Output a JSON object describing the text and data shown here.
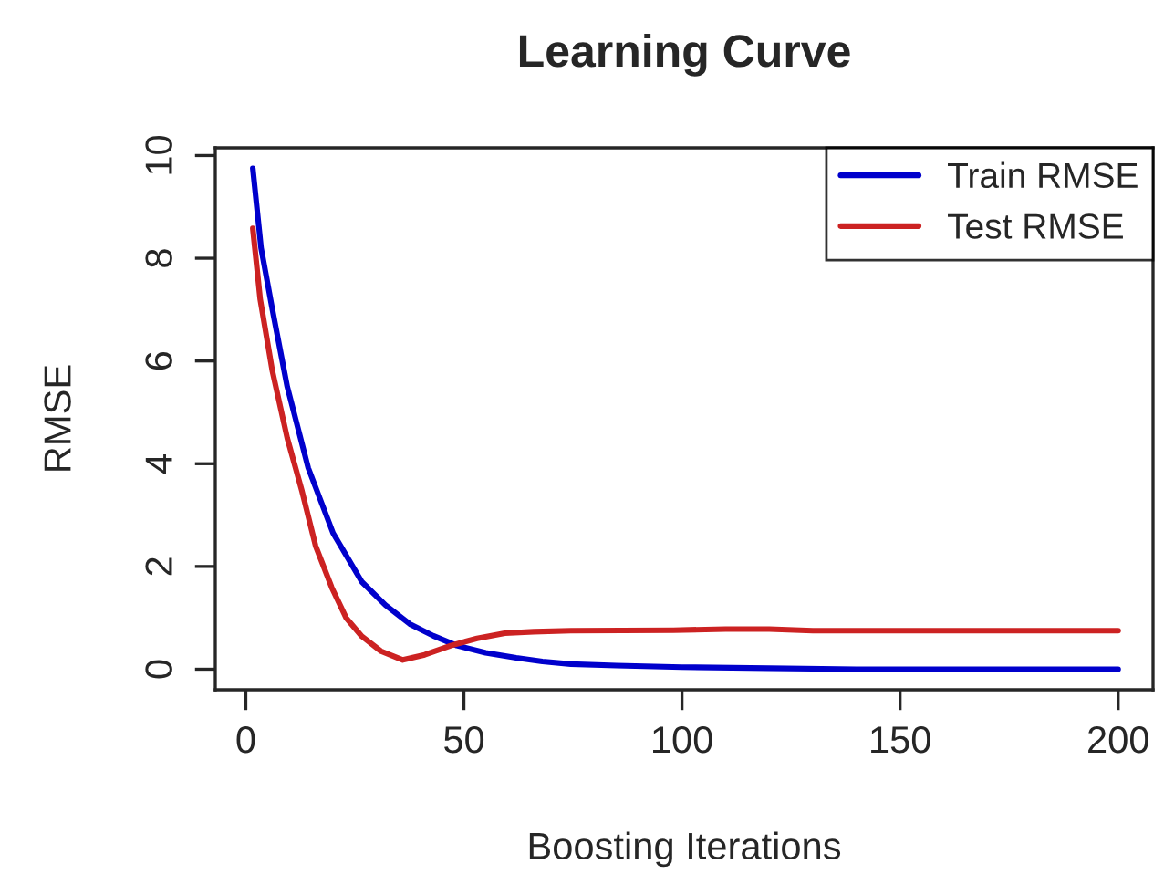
{
  "chart_data": {
    "type": "line",
    "title": "Learning Curve",
    "xlabel": "Boosting Iterations",
    "ylabel": "RMSE",
    "series": [
      {
        "name": "Train RMSE",
        "color": "#0000cc",
        "x": [
          1.6,
          3.5,
          6.1,
          9.5,
          14.3,
          20,
          26.6,
          32,
          37.6,
          43,
          48.4,
          55,
          62,
          68,
          74.5,
          85,
          100,
          120,
          140,
          170,
          200
        ],
        "values": [
          9.75,
          8.2,
          7.0,
          5.5,
          3.92,
          2.65,
          1.7,
          1.25,
          0.88,
          0.65,
          0.46,
          0.32,
          0.22,
          0.15,
          0.1,
          0.07,
          0.04,
          0.02,
          0.0,
          0.0,
          0.0
        ]
      },
      {
        "name": "Test RMSE",
        "color": "#cc2222",
        "x": [
          1.6,
          3.3,
          6.1,
          9.5,
          12.9,
          16,
          19.7,
          23,
          26.6,
          31,
          36,
          41,
          47,
          53,
          59.4,
          66,
          74.5,
          98,
          110,
          120,
          130,
          200
        ],
        "values": [
          8.58,
          7.2,
          5.8,
          4.5,
          3.46,
          2.4,
          1.59,
          1.0,
          0.64,
          0.35,
          0.18,
          0.28,
          0.46,
          0.6,
          0.7,
          0.73,
          0.75,
          0.76,
          0.78,
          0.78,
          0.75,
          0.75
        ]
      }
    ],
    "xlim": [
      -7,
      208
    ],
    "ylim": [
      -0.4,
      10.15
    ],
    "xticks": [
      0,
      50,
      100,
      150,
      200
    ],
    "yticks": [
      0,
      2,
      4,
      6,
      8,
      10
    ],
    "grid": false,
    "legend": "top right",
    "marker": "none",
    "line_style": "solid"
  }
}
